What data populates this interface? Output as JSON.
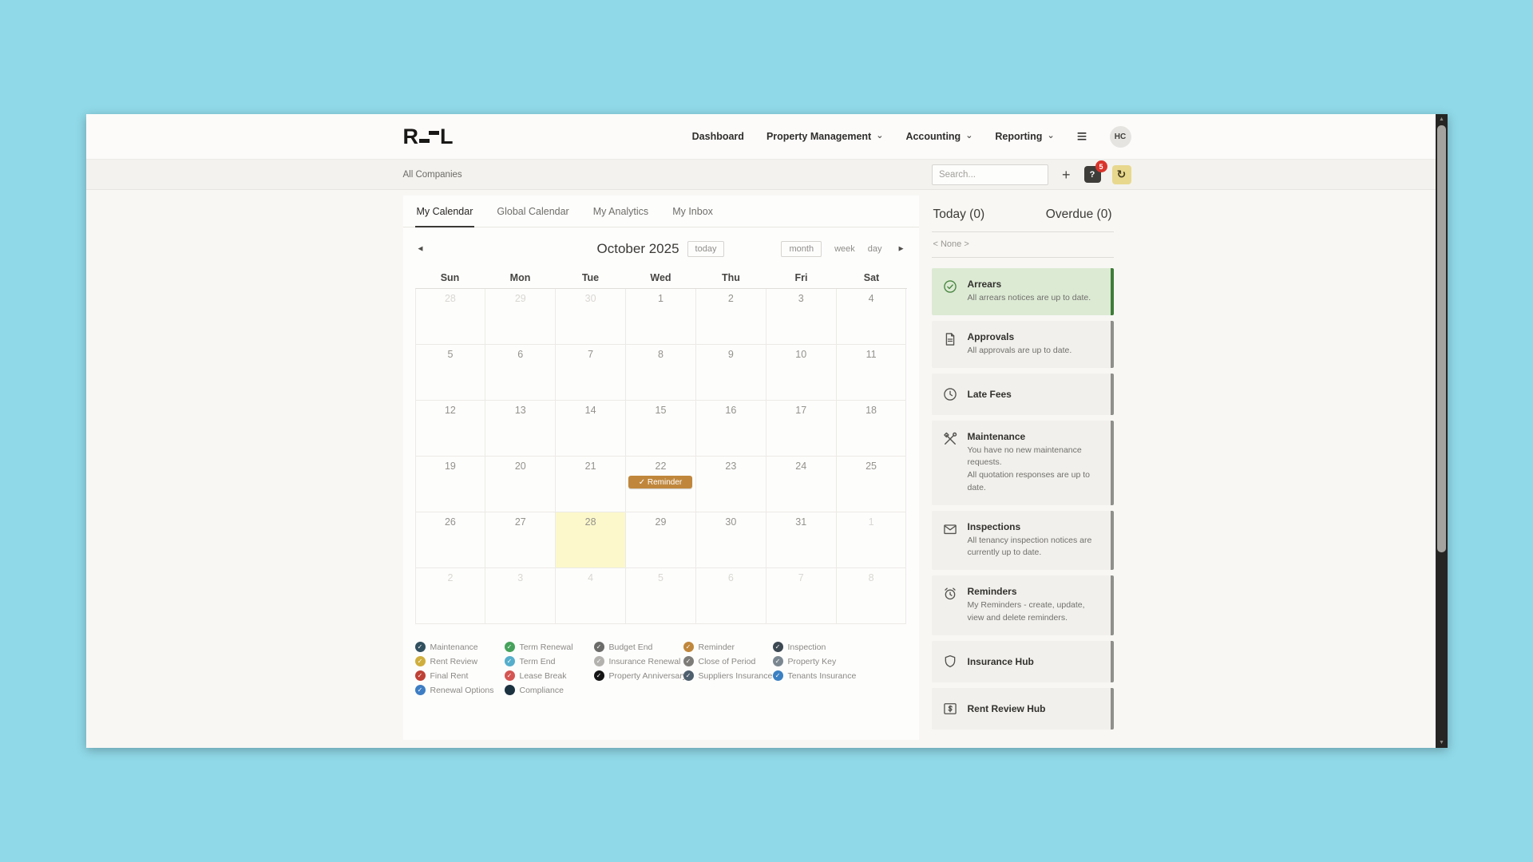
{
  "colors": {
    "event_chip": "#c0873c",
    "today_cell": "#fcf8cb",
    "arrears_bg": "#dcead4",
    "arrears_border": "#3f7d39",
    "notification_badge": "#d9342b"
  },
  "icons": {
    "chevron": "⌄",
    "check": "✓",
    "help": "?",
    "history": "↻",
    "menu": "≡",
    "prev": "◄",
    "next": "►",
    "scroll_up": "▲",
    "scroll_down": "▼"
  },
  "nav": {
    "logo_first": "R",
    "logo_last": "L",
    "items": [
      {
        "label": "Dashboard",
        "has_chevron": false
      },
      {
        "label": "Property Management",
        "has_chevron": true
      },
      {
        "label": "Accounting",
        "has_chevron": true
      },
      {
        "label": "Reporting",
        "has_chevron": true
      }
    ],
    "avatar": "HC"
  },
  "subbar": {
    "company": "All Companies",
    "search_placeholder": "Search...",
    "add_label": "+",
    "badge": "5"
  },
  "tabs": [
    {
      "label": "My Calendar",
      "active": true
    },
    {
      "label": "Global Calendar",
      "active": false
    },
    {
      "label": "My Analytics",
      "active": false
    },
    {
      "label": "My Inbox",
      "active": false
    }
  ],
  "calendar": {
    "title": "October 2025",
    "today_button": "today",
    "view_buttons": [
      "month",
      "week",
      "day"
    ],
    "day_headers": [
      "Sun",
      "Mon",
      "Tue",
      "Wed",
      "Thu",
      "Fri",
      "Sat"
    ],
    "weeks": [
      [
        {
          "d": "28",
          "muted": true
        },
        {
          "d": "29",
          "muted": true
        },
        {
          "d": "30",
          "muted": true
        },
        {
          "d": "1"
        },
        {
          "d": "2"
        },
        {
          "d": "3"
        },
        {
          "d": "4"
        }
      ],
      [
        {
          "d": "5"
        },
        {
          "d": "6"
        },
        {
          "d": "7"
        },
        {
          "d": "8"
        },
        {
          "d": "9"
        },
        {
          "d": "10"
        },
        {
          "d": "11"
        }
      ],
      [
        {
          "d": "12"
        },
        {
          "d": "13"
        },
        {
          "d": "14"
        },
        {
          "d": "15"
        },
        {
          "d": "16"
        },
        {
          "d": "17"
        },
        {
          "d": "18"
        }
      ],
      [
        {
          "d": "19"
        },
        {
          "d": "20"
        },
        {
          "d": "21"
        },
        {
          "d": "22",
          "event": "✓ Reminder"
        },
        {
          "d": "23"
        },
        {
          "d": "24"
        },
        {
          "d": "25"
        }
      ],
      [
        {
          "d": "26"
        },
        {
          "d": "27"
        },
        {
          "d": "28",
          "today": true
        },
        {
          "d": "29"
        },
        {
          "d": "30"
        },
        {
          "d": "31"
        },
        {
          "d": "1",
          "muted": true
        }
      ],
      [
        {
          "d": "2",
          "muted": true
        },
        {
          "d": "3",
          "muted": true
        },
        {
          "d": "4",
          "muted": true
        },
        {
          "d": "5",
          "muted": true
        },
        {
          "d": "6",
          "muted": true
        },
        {
          "d": "7",
          "muted": true
        },
        {
          "d": "8",
          "muted": true
        }
      ]
    ]
  },
  "legend": {
    "columns": [
      [
        {
          "label": "Maintenance",
          "color": "#31505f"
        },
        {
          "label": "Rent Review",
          "color": "#cfae3d"
        },
        {
          "label": "Final Rent",
          "color": "#bf4136"
        },
        {
          "label": "Renewal Options",
          "color": "#3d7dc4"
        }
      ],
      [
        {
          "label": "Term Renewal",
          "color": "#46a25b"
        },
        {
          "label": "Term End",
          "color": "#55aecb"
        },
        {
          "label": "Lease Break",
          "color": "#d45552"
        },
        {
          "label": "Compliance",
          "color": "#1b3240",
          "type": "dot"
        }
      ],
      [
        {
          "label": "Budget End",
          "color": "#6b6b69"
        },
        {
          "label": "Insurance Renewal",
          "color": "#b3b2af"
        },
        {
          "label": "Property Anniversary",
          "color": "#141414"
        }
      ],
      [
        {
          "label": "Reminder",
          "color": "#c0873c"
        },
        {
          "label": "Close of Period",
          "color": "#7d7c79"
        },
        {
          "label": "Suppliers Insurance",
          "color": "#4e5f6d"
        }
      ],
      [
        {
          "label": "Inspection",
          "color": "#3c4852"
        },
        {
          "label": "Property Key",
          "color": "#7b8790"
        },
        {
          "label": "Tenants Insurance",
          "color": "#3b80c2"
        }
      ]
    ]
  },
  "sidebar": {
    "today_label": "Today (0)",
    "overdue_label": "Overdue (0)",
    "filter": "< None >",
    "cards": [
      {
        "title": "Arrears",
        "lines": [
          "All arrears notices are up to date."
        ],
        "icon": "check-circle",
        "variant": "green"
      },
      {
        "title": "Approvals",
        "lines": [
          "All approvals are up to date."
        ],
        "icon": "document"
      },
      {
        "title": "Late Fees",
        "lines": [],
        "icon": "clock"
      },
      {
        "title": "Maintenance",
        "lines": [
          "You have no new maintenance requests.",
          "All quotation responses are up to date."
        ],
        "icon": "tools"
      },
      {
        "title": "Inspections",
        "lines": [
          "All tenancy inspection notices are currently up to date."
        ],
        "icon": "envelope"
      },
      {
        "title": "Reminders",
        "lines": [
          "My Reminders - create, update, view and delete reminders."
        ],
        "icon": "alarm"
      },
      {
        "title": "Insurance Hub",
        "lines": [],
        "icon": "shield"
      },
      {
        "title": "Rent Review Hub",
        "lines": [],
        "icon": "dollar"
      }
    ]
  }
}
